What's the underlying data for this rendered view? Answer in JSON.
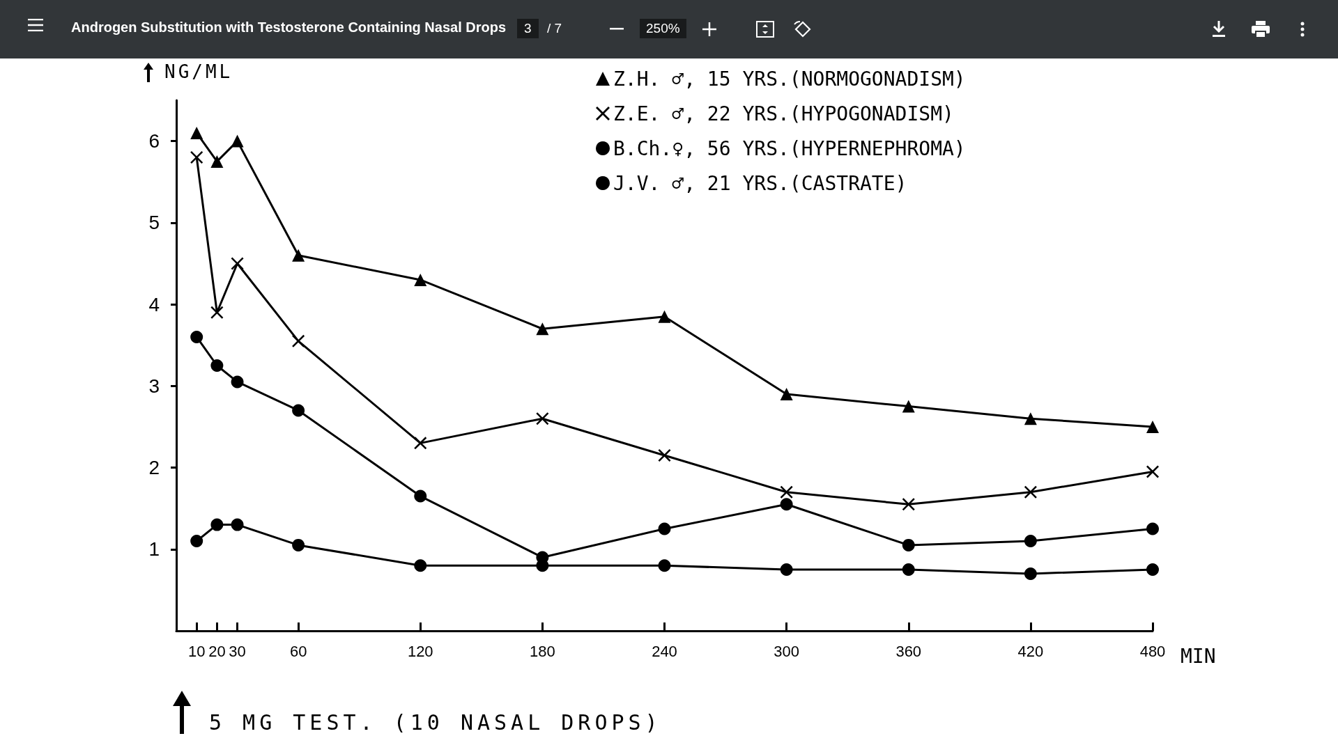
{
  "chart_data": {
    "type": "line",
    "title": "Androgen Substitution with Testosterone Containing Nasal Drops",
    "ylabel": "NG/ML",
    "xlabel": "MIN",
    "annotations": [
      "3",
      "/ 7",
      "250%",
      "5 MG TEST. (10 NASAL DROPS)"
    ],
    "xlim": [
      0,
      480
    ],
    "xticks": [
      10,
      20,
      30,
      60,
      120,
      180,
      240,
      300,
      360,
      420,
      480
    ],
    "ylim": [
      0,
      6.5
    ],
    "yticks": [
      1,
      2,
      3,
      4,
      5,
      6
    ],
    "legend": "top right",
    "grid": false,
    "line_style": "solid",
    "series": [
      {
        "name": "Z.H. ♂, 15 YRS.(NORMOGONADISM)",
        "color": "#000000",
        "marker": "triangle",
        "x": [
          10,
          20,
          30,
          60,
          120,
          180,
          240,
          300,
          360,
          420,
          480
        ],
        "values": [
          6.1,
          5.75,
          6.0,
          4.6,
          4.3,
          3.7,
          3.85,
          2.9,
          2.75,
          2.6,
          2.5
        ]
      },
      {
        "name": "Z.E. ♂, 22 YRS.(HYPOGONADISM)",
        "color": "#000000",
        "marker": "cross",
        "x": [
          10,
          20,
          30,
          60,
          120,
          180,
          240,
          300,
          360,
          420,
          480
        ],
        "values": [
          5.8,
          3.9,
          4.5,
          3.55,
          2.3,
          2.6,
          2.15,
          1.7,
          1.55,
          1.7,
          1.95
        ]
      },
      {
        "name": "B.Ch.♀, 56 YRS.(HYPERNEPHROMA)",
        "color": "#000000",
        "marker": "circle",
        "x": [
          10,
          20,
          30,
          60,
          120,
          180,
          240,
          300,
          360,
          420,
          480
        ],
        "values": [
          3.6,
          3.25,
          3.05,
          2.7,
          1.65,
          0.9,
          1.25,
          1.55,
          1.05,
          1.1,
          1.25
        ]
      },
      {
        "name": "J.V. ♂, 21 YRS.(CASTRATE)",
        "color": "#000000",
        "marker": "circle",
        "x": [
          10,
          20,
          30,
          60,
          120,
          180,
          240,
          300,
          360,
          420,
          480
        ],
        "values": [
          1.1,
          1.3,
          1.3,
          1.05,
          0.8,
          0.8,
          0.8,
          0.75,
          0.75,
          0.7,
          0.75
        ]
      }
    ]
  }
}
